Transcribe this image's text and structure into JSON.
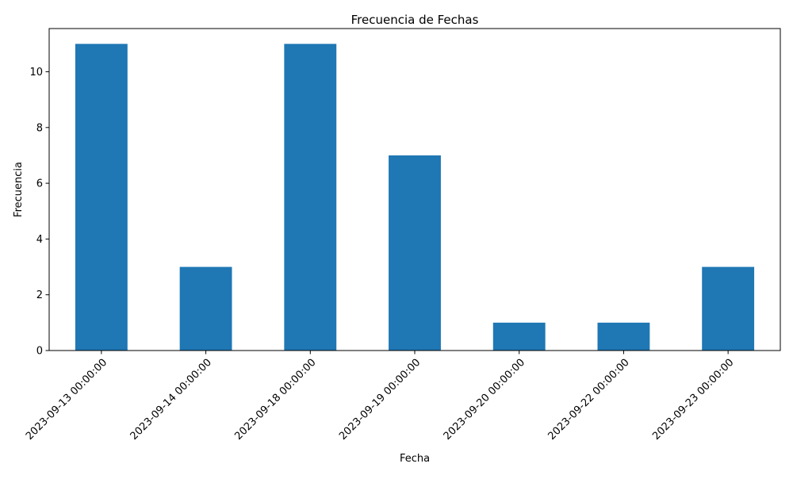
{
  "chart_data": {
    "type": "bar",
    "title": "Frecuencia de Fechas",
    "xlabel": "Fecha",
    "ylabel": "Frecuencia",
    "categories": [
      "2023-09-13 00:00:00",
      "2023-09-14 00:00:00",
      "2023-09-18 00:00:00",
      "2023-09-19 00:00:00",
      "2023-09-20 00:00:00",
      "2023-09-22 00:00:00",
      "2023-09-23 00:00:00"
    ],
    "values": [
      11,
      3,
      11,
      7,
      1,
      1,
      3
    ],
    "ylim": [
      0,
      11.55
    ],
    "yticks": [
      "0",
      "2",
      "4",
      "6",
      "8",
      "10"
    ],
    "bar_color": "#1f77b4",
    "grid": false,
    "legend": "none",
    "xtick_rotation_deg": 45
  }
}
